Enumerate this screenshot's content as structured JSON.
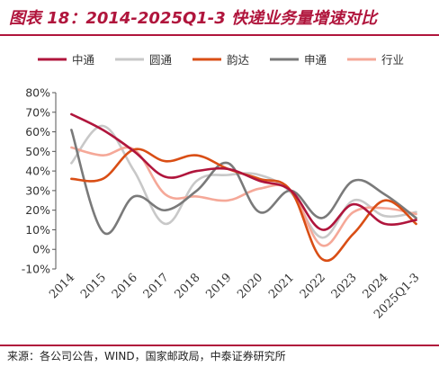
{
  "header": {
    "title": "图表 18：2014-2025Q1-3 快递业务量增速对比"
  },
  "footer": {
    "source": "来源：各公司公告，WIND，国家邮政局，中泰证券研究所"
  },
  "chart_data": {
    "type": "line",
    "title": "图表 18：2014-2025Q1-3 快递业务量增速对比",
    "categories": [
      "2014",
      "2015",
      "2016",
      "2017",
      "2018",
      "2019",
      "2020",
      "2021",
      "2022",
      "2023",
      "2024",
      "2025Q1-3"
    ],
    "y_ticks": [
      "80%",
      "70%",
      "60%",
      "50%",
      "40%",
      "30%",
      "20%",
      "10%",
      "0%",
      "-10%"
    ],
    "ylim": [
      -10,
      80
    ],
    "legend_position": "top",
    "grid": false,
    "series": [
      {
        "name": "中通",
        "color": "#b0153c",
        "values": [
          69,
          61,
          50,
          37,
          40,
          41,
          35,
          30,
          10,
          23,
          13,
          15
        ]
      },
      {
        "name": "圆通",
        "color": "#c8c8c8",
        "values": [
          44,
          63,
          40,
          13,
          35,
          38,
          38,
          29,
          6,
          25,
          17,
          19
        ]
      },
      {
        "name": "韵达",
        "color": "#d94e15",
        "values": [
          36,
          36,
          51,
          45,
          48,
          41,
          36,
          30,
          -5,
          8,
          25,
          13
        ]
      },
      {
        "name": "申通",
        "color": "#7a7a7a",
        "values": [
          61,
          9,
          27,
          20,
          30,
          44,
          19,
          30,
          16,
          35,
          28,
          16
        ]
      },
      {
        "name": "行业",
        "color": "#f5a898",
        "values": [
          52,
          48,
          51,
          28,
          27,
          25,
          31,
          30,
          2,
          19,
          21,
          18
        ]
      }
    ]
  }
}
